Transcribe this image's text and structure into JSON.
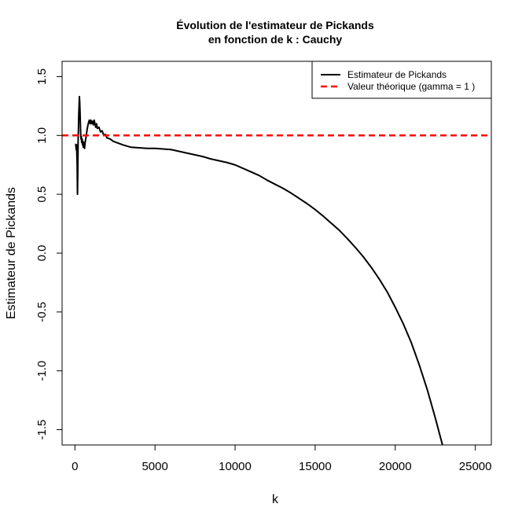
{
  "chart_data": {
    "type": "line",
    "title_lines": [
      "Évolution de l'estimateur de Pickands",
      "en fonction de k : Cauchy"
    ],
    "xlabel": "k",
    "ylabel": "Estimateur de Pickands",
    "xlim": [
      -800,
      26000
    ],
    "ylim": [
      -1.63,
      1.63
    ],
    "x_ticks": [
      0,
      5000,
      10000,
      15000,
      20000,
      25000
    ],
    "x_tick_labels": [
      "0",
      "5000",
      "10000",
      "15000",
      "20000",
      "25000"
    ],
    "y_ticks": [
      -1.5,
      -1.0,
      -0.5,
      0.0,
      0.5,
      1.0,
      1.5
    ],
    "y_tick_labels": [
      "-1.5",
      "-1.0",
      "-0.5",
      "0.0",
      "0.5",
      "1.0",
      "1.5"
    ],
    "grid": false,
    "legend_position": "top-right",
    "series": [
      {
        "name": "Estimateur de Pickands",
        "color": "#000000",
        "line_style": "solid",
        "points": [
          [
            50,
            0.93
          ],
          [
            80,
            0.88
          ],
          [
            100,
            0.92
          ],
          [
            120,
            0.85
          ],
          [
            140,
            0.75
          ],
          [
            150,
            0.62
          ],
          [
            160,
            0.5
          ],
          [
            180,
            0.7
          ],
          [
            200,
            0.95
          ],
          [
            220,
            1.05
          ],
          [
            240,
            1.18
          ],
          [
            260,
            1.25
          ],
          [
            280,
            1.33
          ],
          [
            300,
            1.28
          ],
          [
            320,
            1.2
          ],
          [
            340,
            1.1
          ],
          [
            360,
            1.02
          ],
          [
            380,
            0.97
          ],
          [
            400,
            0.99
          ],
          [
            420,
            0.94
          ],
          [
            450,
            0.97
          ],
          [
            480,
            0.92
          ],
          [
            500,
            0.95
          ],
          [
            520,
            0.9
          ],
          [
            560,
            0.94
          ],
          [
            600,
            0.89
          ],
          [
            630,
            0.93
          ],
          [
            660,
            0.96
          ],
          [
            700,
            0.99
          ],
          [
            750,
            1.04
          ],
          [
            800,
            1.08
          ],
          [
            850,
            1.11
          ],
          [
            900,
            1.13
          ],
          [
            950,
            1.1
          ],
          [
            1000,
            1.13
          ],
          [
            1050,
            1.1
          ],
          [
            1100,
            1.12
          ],
          [
            1150,
            1.09
          ],
          [
            1200,
            1.13
          ],
          [
            1250,
            1.1
          ],
          [
            1300,
            1.07
          ],
          [
            1350,
            1.1
          ],
          [
            1400,
            1.06
          ],
          [
            1500,
            1.07
          ],
          [
            1600,
            1.03
          ],
          [
            1700,
            1.04
          ],
          [
            1800,
            1.0
          ],
          [
            1900,
            1.01
          ],
          [
            2000,
            0.98
          ],
          [
            2200,
            0.97
          ],
          [
            2400,
            0.95
          ],
          [
            2600,
            0.94
          ],
          [
            2800,
            0.93
          ],
          [
            3000,
            0.92
          ],
          [
            3500,
            0.9
          ],
          [
            4000,
            0.895
          ],
          [
            4500,
            0.89
          ],
          [
            5000,
            0.89
          ],
          [
            5500,
            0.885
          ],
          [
            6000,
            0.88
          ],
          [
            6500,
            0.865
          ],
          [
            7000,
            0.85
          ],
          [
            7500,
            0.835
          ],
          [
            8000,
            0.82
          ],
          [
            8500,
            0.8
          ],
          [
            9000,
            0.785
          ],
          [
            9500,
            0.77
          ],
          [
            10000,
            0.75
          ],
          [
            10500,
            0.72
          ],
          [
            11000,
            0.69
          ],
          [
            11500,
            0.66
          ],
          [
            12000,
            0.62
          ],
          [
            12500,
            0.585
          ],
          [
            13000,
            0.55
          ],
          [
            13500,
            0.51
          ],
          [
            14000,
            0.465
          ],
          [
            14500,
            0.42
          ],
          [
            15000,
            0.37
          ],
          [
            15500,
            0.315
          ],
          [
            16000,
            0.255
          ],
          [
            16500,
            0.195
          ],
          [
            17000,
            0.125
          ],
          [
            17500,
            0.05
          ],
          [
            18000,
            -0.03
          ],
          [
            18500,
            -0.12
          ],
          [
            19000,
            -0.22
          ],
          [
            19500,
            -0.33
          ],
          [
            20000,
            -0.46
          ],
          [
            20500,
            -0.6
          ],
          [
            21000,
            -0.76
          ],
          [
            21500,
            -0.95
          ],
          [
            22000,
            -1.16
          ],
          [
            22500,
            -1.4
          ],
          [
            22950,
            -1.63
          ]
        ]
      },
      {
        "name": "Valeur théorique (gamma = 1 )",
        "color": "#ff0000",
        "line_style": "dashed",
        "y_constant": 1.0
      }
    ]
  }
}
